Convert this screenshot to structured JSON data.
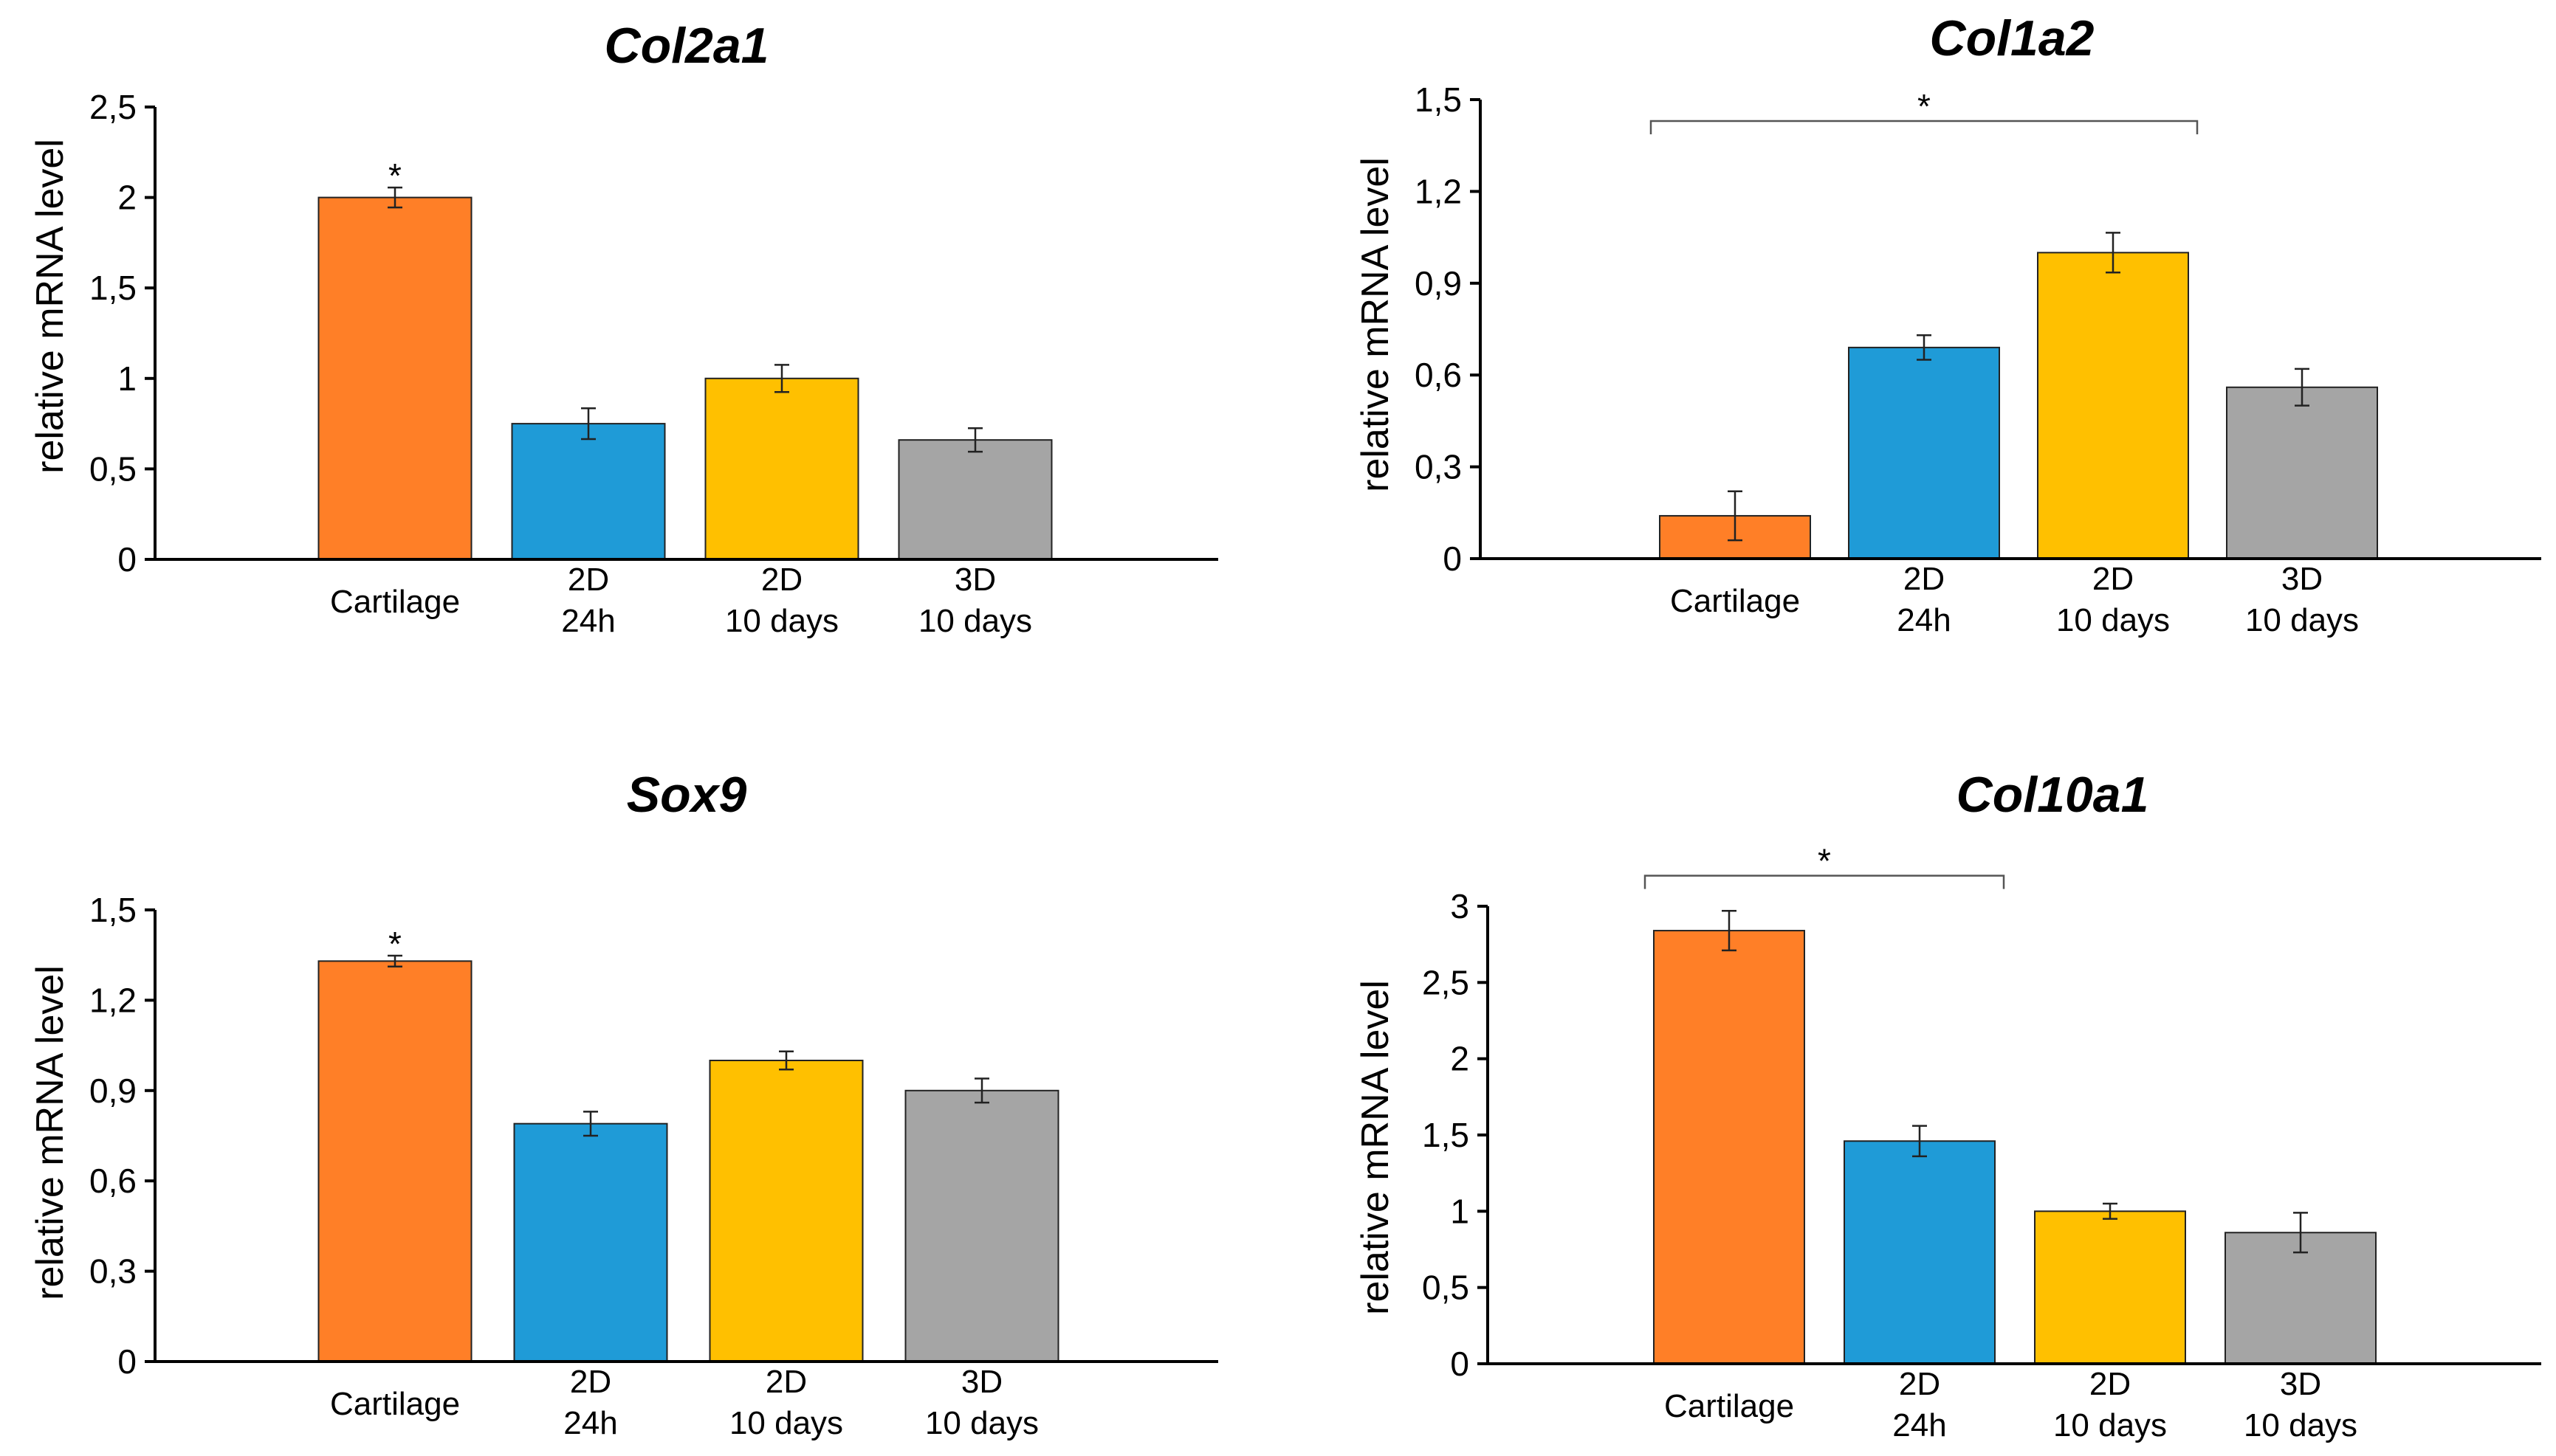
{
  "chart_data": [
    {
      "type": "bar",
      "title": "Col2a1",
      "ylabel": "relative mRNA level",
      "xlabel": "",
      "ylim": [
        0,
        2.5
      ],
      "yticks": [
        "0",
        "0,5",
        "1",
        "1,5",
        "2",
        "2,5"
      ],
      "ytick_values": [
        0,
        0.5,
        1,
        1.5,
        2,
        2.5
      ],
      "categories": [
        {
          "line1": "Cartilage",
          "line2": ""
        },
        {
          "line1": "2D",
          "line2": "24h"
        },
        {
          "line1": "2D",
          "line2": "10 days"
        },
        {
          "line1": "3D",
          "line2": "10 days"
        }
      ],
      "values": [
        2.0,
        0.75,
        1.0,
        0.66
      ],
      "errors": [
        0.055,
        0.085,
        0.075,
        0.065
      ],
      "colors": [
        "#ff7f27",
        "#1f9bd7",
        "#ffc000",
        "#a5a5a5"
      ],
      "annotations": [
        {
          "text": "*",
          "type": "single",
          "index": 0
        }
      ]
    },
    {
      "type": "bar",
      "title": "Col1a2",
      "ylabel": "relative mRNA level",
      "xlabel": "",
      "ylim": [
        0,
        1.5
      ],
      "yticks": [
        "0",
        "0,3",
        "0,6",
        "0,9",
        "1,2",
        "1,5"
      ],
      "ytick_values": [
        0,
        0.3,
        0.6,
        0.9,
        1.2,
        1.5
      ],
      "categories": [
        {
          "line1": "Cartilage",
          "line2": ""
        },
        {
          "line1": "2D",
          "line2": "24h"
        },
        {
          "line1": "2D",
          "line2": "10 days"
        },
        {
          "line1": "3D",
          "line2": "10 days"
        }
      ],
      "values": [
        0.14,
        0.69,
        1.0,
        0.56
      ],
      "errors": [
        0.08,
        0.04,
        0.065,
        0.06
      ],
      "colors": [
        "#ff7f27",
        "#1f9bd7",
        "#ffc000",
        "#a5a5a5"
      ],
      "annotations": [
        {
          "text": "*",
          "type": "bracket",
          "from": 0,
          "to": 2,
          "level": 1.43
        }
      ]
    },
    {
      "type": "bar",
      "title": "Sox9",
      "ylabel": "relative mRNA level",
      "xlabel": "",
      "ylim": [
        0,
        1.5
      ],
      "yticks": [
        "0",
        "0,3",
        "0,6",
        "0,9",
        "1,2",
        "1,5"
      ],
      "ytick_values": [
        0,
        0.3,
        0.6,
        0.9,
        1.2,
        1.5
      ],
      "categories": [
        {
          "line1": "Cartilage",
          "line2": ""
        },
        {
          "line1": "2D",
          "line2": "24h"
        },
        {
          "line1": "2D",
          "line2": "10 days"
        },
        {
          "line1": "3D",
          "line2": "10 days"
        }
      ],
      "values": [
        1.33,
        0.79,
        1.0,
        0.9
      ],
      "errors": [
        0.018,
        0.04,
        0.03,
        0.04
      ],
      "colors": [
        "#ff7f27",
        "#1f9bd7",
        "#ffc000",
        "#a5a5a5"
      ],
      "annotations": [
        {
          "text": "*",
          "type": "single",
          "index": 0
        }
      ]
    },
    {
      "type": "bar",
      "title": "Col10a1",
      "ylabel": "relative mRNA level",
      "xlabel": "",
      "ylim": [
        0,
        3
      ],
      "yticks": [
        "0",
        "0,5",
        "1",
        "1,5",
        "2",
        "2,5",
        "3"
      ],
      "ytick_values": [
        0,
        0.5,
        1,
        1.5,
        2,
        2.5,
        3
      ],
      "categories": [
        {
          "line1": "Cartilage",
          "line2": ""
        },
        {
          "line1": "2D",
          "line2": "24h"
        },
        {
          "line1": "2D",
          "line2": "10 days"
        },
        {
          "line1": "3D",
          "line2": "10 days"
        }
      ],
      "values": [
        2.84,
        1.46,
        1.0,
        0.86
      ],
      "errors": [
        0.13,
        0.1,
        0.05,
        0.13
      ],
      "colors": [
        "#ff7f27",
        "#1f9bd7",
        "#ffc000",
        "#a5a5a5"
      ],
      "annotations": [
        {
          "text": "*",
          "type": "bracket",
          "from": 0,
          "to": 1,
          "level": 3.2
        }
      ]
    }
  ]
}
